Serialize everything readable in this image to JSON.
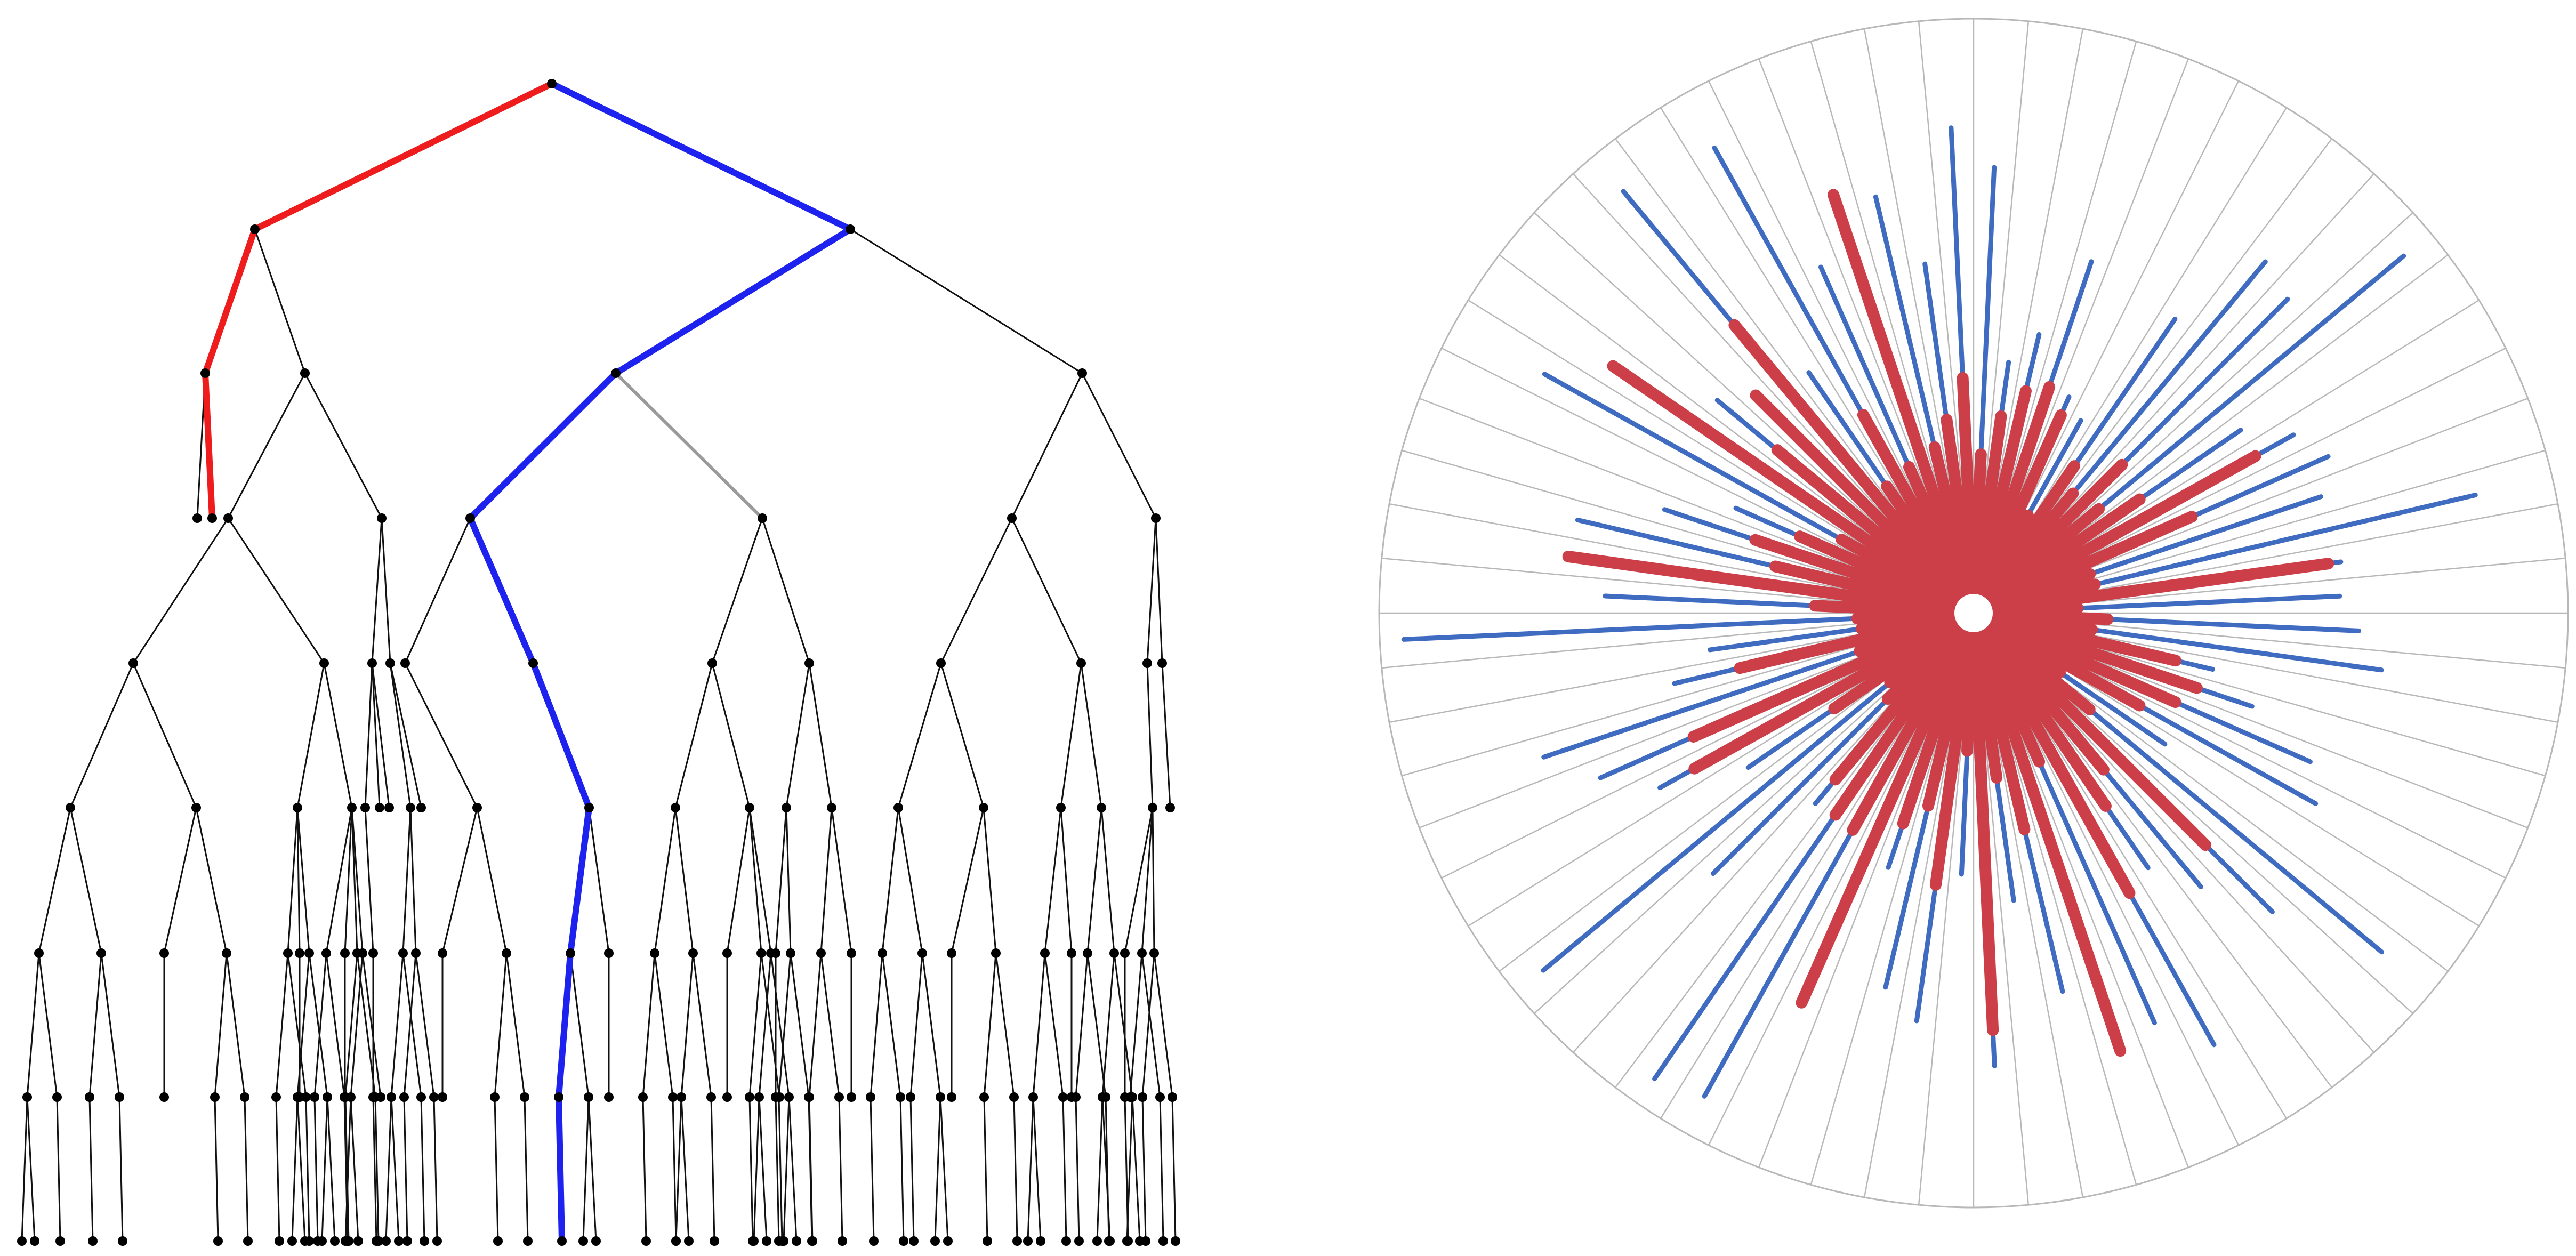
{
  "colors": {
    "background": "#ffffff",
    "tree_edge": "#111111",
    "tree_node": "#000000",
    "path_red": "#ee1c1c",
    "path_blue": "#1e22ee",
    "highlight_edge": "#9a9a9a",
    "spoke_blue": "#3f6cc0",
    "spoke_red": "#cc3e48",
    "radial_grid": "#b8b8b8",
    "hub_hole": "#ffffff"
  },
  "tree": {
    "depth_levels": 9
  },
  "radial": {
    "sector_count": 68
  }
}
